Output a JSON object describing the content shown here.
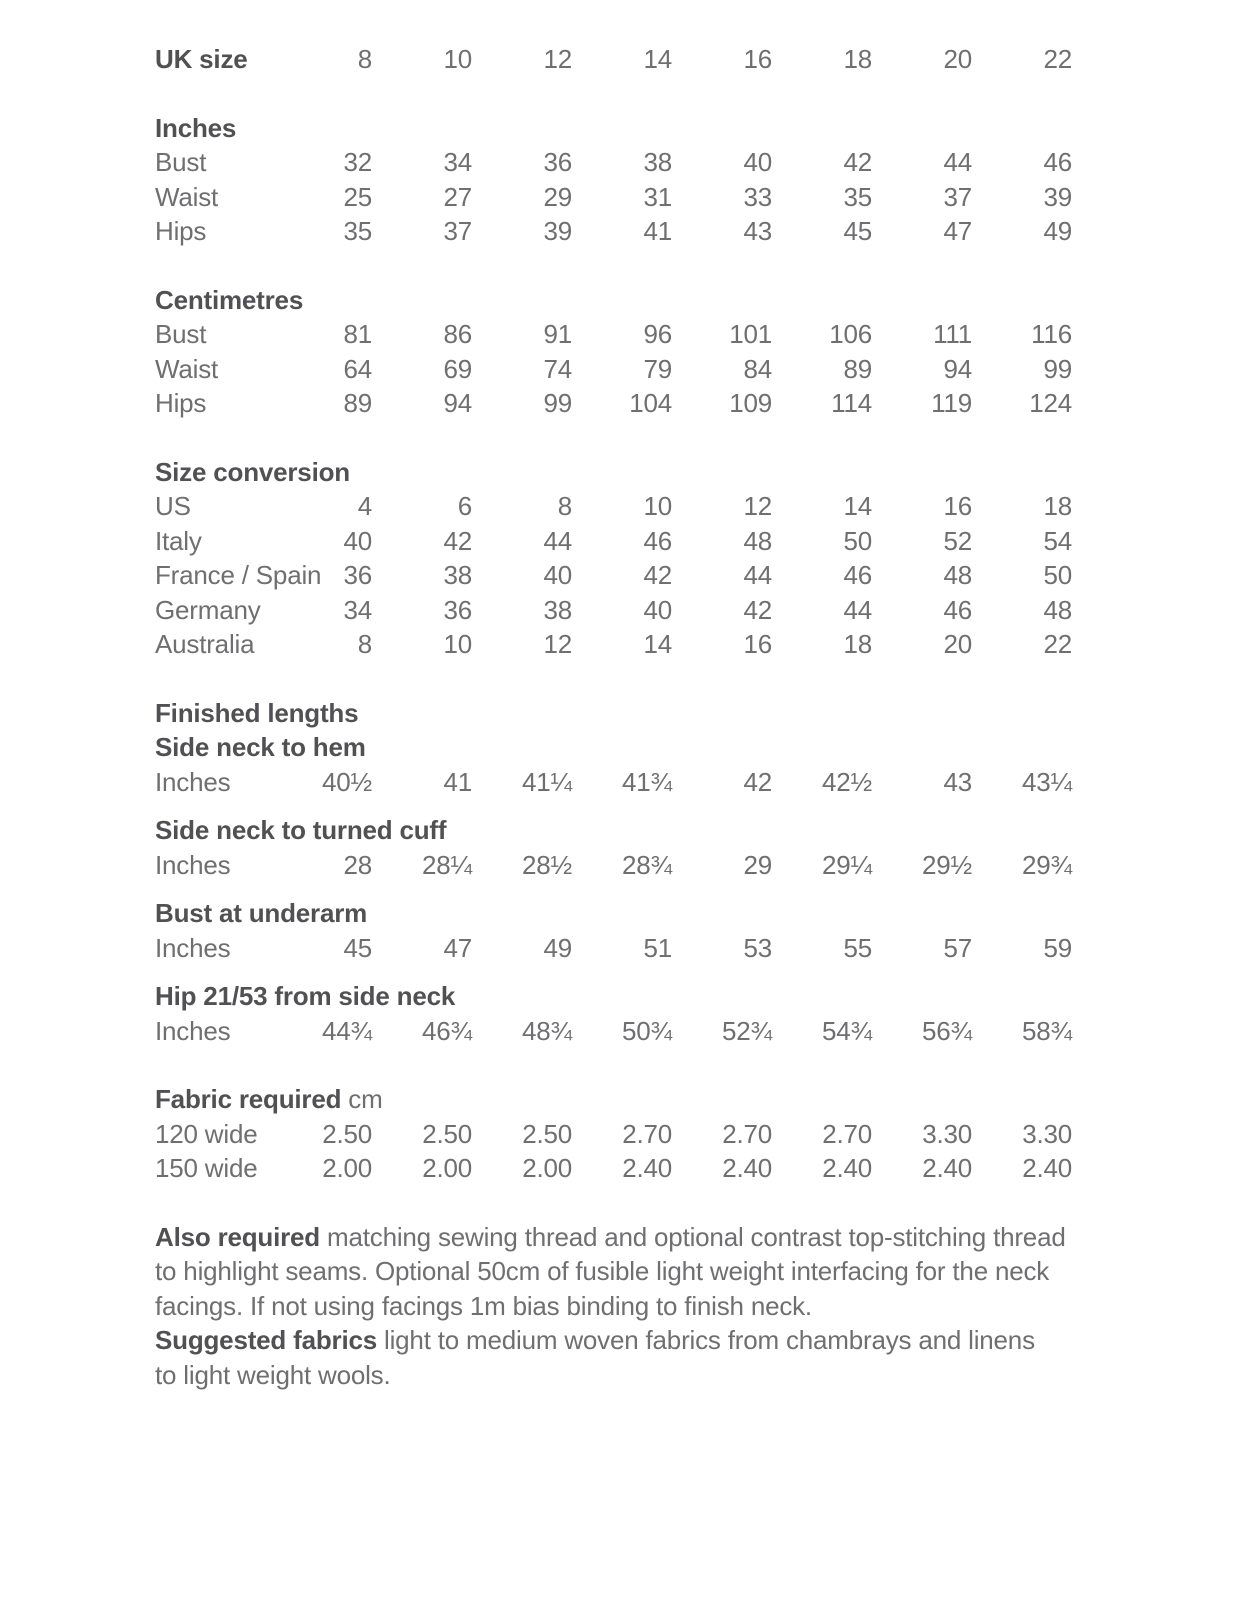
{
  "colors": {
    "background": "#ffffff",
    "heading_text": "#515154",
    "body_text": "#6f6f72"
  },
  "table": {
    "blocks": [
      {
        "name": "uk-size",
        "rows": [
          {
            "label": "UK size",
            "bold": true,
            "values": [
              "8",
              "10",
              "12",
              "14",
              "16",
              "18",
              "20",
              "22"
            ]
          }
        ]
      },
      {
        "name": "inches",
        "headings": [
          {
            "text": "Inches"
          }
        ],
        "rows": [
          {
            "label": "Bust",
            "values": [
              "32",
              "34",
              "36",
              "38",
              "40",
              "42",
              "44",
              "46"
            ]
          },
          {
            "label": "Waist",
            "values": [
              "25",
              "27",
              "29",
              "31",
              "33",
              "35",
              "37",
              "39"
            ]
          },
          {
            "label": "Hips",
            "values": [
              "35",
              "37",
              "39",
              "41",
              "43",
              "45",
              "47",
              "49"
            ]
          }
        ]
      },
      {
        "name": "centimetres",
        "headings": [
          {
            "text": "Centimetres"
          }
        ],
        "rows": [
          {
            "label": "Bust",
            "values": [
              "81",
              "86",
              "91",
              "96",
              "101",
              "106",
              "111",
              "116"
            ]
          },
          {
            "label": "Waist",
            "values": [
              "64",
              "69",
              "74",
              "79",
              "84",
              "89",
              "94",
              "99"
            ]
          },
          {
            "label": "Hips",
            "values": [
              "89",
              "94",
              "99",
              "104",
              "109",
              "114",
              "119",
              "124"
            ]
          }
        ]
      },
      {
        "name": "size-conversion",
        "headings": [
          {
            "text": "Size conversion"
          }
        ],
        "rows": [
          {
            "label": "US",
            "values": [
              "4",
              "6",
              "8",
              "10",
              "12",
              "14",
              "16",
              "18"
            ]
          },
          {
            "label": "Italy",
            "values": [
              "40",
              "42",
              "44",
              "46",
              "48",
              "50",
              "52",
              "54"
            ]
          },
          {
            "label": "France / Spain",
            "values": [
              "36",
              "38",
              "40",
              "42",
              "44",
              "46",
              "48",
              "50"
            ]
          },
          {
            "label": "Germany",
            "values": [
              "34",
              "36",
              "38",
              "40",
              "42",
              "44",
              "46",
              "48"
            ]
          },
          {
            "label": "Australia",
            "values": [
              "8",
              "10",
              "12",
              "14",
              "16",
              "18",
              "20",
              "22"
            ]
          }
        ]
      },
      {
        "name": "side-neck-to-hem",
        "headings": [
          {
            "text": "Finished lengths"
          },
          {
            "text": "Side neck to hem"
          }
        ],
        "rows": [
          {
            "label": "Inches",
            "values": [
              "40½",
              "41",
              "41¼",
              "41¾",
              "42",
              "42½",
              "43",
              "43¼"
            ]
          }
        ]
      },
      {
        "name": "side-neck-to-turned-cuff",
        "tight": true,
        "headings": [
          {
            "text": "Side neck to turned cuff"
          }
        ],
        "rows": [
          {
            "label": "Inches",
            "values": [
              "28",
              "28¼",
              "28½",
              "28¾",
              "29",
              "29¼",
              "29½",
              "29¾"
            ]
          }
        ]
      },
      {
        "name": "bust-at-underarm",
        "tight": true,
        "headings": [
          {
            "text": "Bust at underarm"
          }
        ],
        "rows": [
          {
            "label": "Inches",
            "values": [
              "45",
              "47",
              "49",
              "51",
              "53",
              "55",
              "57",
              "59"
            ]
          }
        ]
      },
      {
        "name": "hip-from-side-neck",
        "tight": true,
        "headings": [
          {
            "text": "Hip 21/53 from side neck"
          }
        ],
        "rows": [
          {
            "label": "Inches",
            "values": [
              "44¾",
              "46¾",
              "48¾",
              "50¾",
              "52¾",
              "54¾",
              "56¾",
              "58¾"
            ]
          }
        ]
      },
      {
        "name": "fabric-required",
        "headings": [
          {
            "text": "Fabric required",
            "suffix": " cm"
          }
        ],
        "rows": [
          {
            "label": "120 wide",
            "values": [
              "2.50",
              "2.50",
              "2.50",
              "2.70",
              "2.70",
              "2.70",
              "3.30",
              "3.30"
            ]
          },
          {
            "label": "150 wide",
            "values": [
              "2.00",
              "2.00",
              "2.00",
              "2.40",
              "2.40",
              "2.40",
              "2.40",
              "2.40"
            ]
          }
        ]
      }
    ]
  },
  "notes": [
    {
      "bold": "Also required",
      "text": " matching sewing thread and optional contrast top-stitching thread to highlight seams. Optional 50cm of fusible light weight interfacing for the neck facings. If not using facings 1m bias binding to finish neck."
    },
    {
      "bold": "Suggested fabrics",
      "text": " light to medium woven fabrics from chambrays and linens to light weight wools."
    }
  ]
}
